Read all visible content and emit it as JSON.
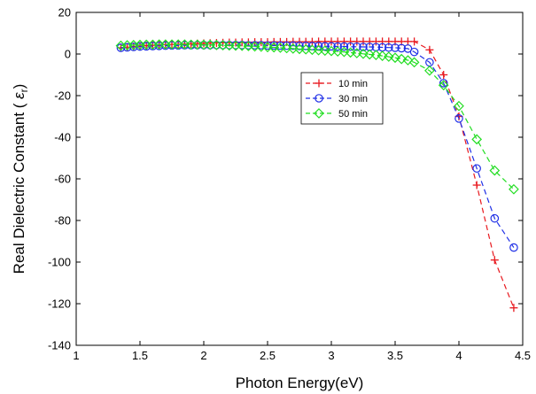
{
  "chart_data": {
    "type": "line",
    "title": "",
    "xlabel": "Photon Energy(eV)",
    "ylabel_main": "Real Dielectric Constant (",
    "ylabel_symbol": "ε",
    "ylabel_sub": "r",
    "ylabel_end": ")",
    "xlim": [
      1,
      4.5
    ],
    "ylim": [
      -140,
      20
    ],
    "x_ticks": [
      1,
      1.5,
      2,
      2.5,
      3,
      3.5,
      4,
      4.5
    ],
    "x_tick_labels": [
      "1",
      "1.5",
      "2",
      "2.5",
      "3",
      "3.5",
      "4",
      "4.5"
    ],
    "y_ticks": [
      20,
      0,
      -20,
      -40,
      -60,
      -80,
      -100,
      -120,
      -140
    ],
    "y_tick_labels": [
      "20",
      "0",
      "-20",
      "-40",
      "-60",
      "-80",
      "-100",
      "-120",
      "-140"
    ],
    "grid": false,
    "legend_position": "upper-middle-right",
    "series": [
      {
        "name": "10 min",
        "color": "#e8181e",
        "marker": "plus",
        "x": [
          1.35,
          1.4,
          1.45,
          1.5,
          1.55,
          1.6,
          1.65,
          1.7,
          1.75,
          1.8,
          1.85,
          1.9,
          1.95,
          2.0,
          2.05,
          2.1,
          2.15,
          2.2,
          2.25,
          2.3,
          2.35,
          2.4,
          2.45,
          2.5,
          2.55,
          2.6,
          2.65,
          2.7,
          2.75,
          2.8,
          2.85,
          2.9,
          2.95,
          3.0,
          3.05,
          3.1,
          3.15,
          3.2,
          3.25,
          3.3,
          3.35,
          3.4,
          3.45,
          3.5,
          3.55,
          3.6,
          3.65,
          3.77,
          3.88,
          4.0,
          4.14,
          4.28,
          4.43
        ],
        "y": [
          3.0,
          3.3,
          3.6,
          3.8,
          4.0,
          4.2,
          4.4,
          4.5,
          4.6,
          4.7,
          4.8,
          4.9,
          5.0,
          5.1,
          5.2,
          5.3,
          5.4,
          5.5,
          5.5,
          5.6,
          5.6,
          5.7,
          5.7,
          5.7,
          5.8,
          5.8,
          5.8,
          5.9,
          5.9,
          5.9,
          5.9,
          6.0,
          6.0,
          6.0,
          6.0,
          6.0,
          6.0,
          6.0,
          6.0,
          6.0,
          6.0,
          6.0,
          6.0,
          6.0,
          6.0,
          6.0,
          6.0,
          2.0,
          -10,
          -30,
          -63,
          -99,
          -122
        ]
      },
      {
        "name": "30 min",
        "color": "#1f2fe6",
        "marker": "circle",
        "x": [
          1.35,
          1.4,
          1.45,
          1.5,
          1.55,
          1.6,
          1.65,
          1.7,
          1.75,
          1.8,
          1.85,
          1.9,
          1.95,
          2.0,
          2.05,
          2.1,
          2.15,
          2.2,
          2.25,
          2.3,
          2.35,
          2.4,
          2.45,
          2.5,
          2.55,
          2.6,
          2.65,
          2.7,
          2.75,
          2.8,
          2.85,
          2.9,
          2.95,
          3.0,
          3.05,
          3.1,
          3.15,
          3.2,
          3.25,
          3.3,
          3.35,
          3.4,
          3.45,
          3.5,
          3.55,
          3.6,
          3.65,
          3.77,
          3.88,
          4.0,
          4.14,
          4.28,
          4.43
        ],
        "y": [
          3.0,
          3.2,
          3.4,
          3.6,
          3.7,
          3.8,
          3.9,
          4.0,
          4.1,
          4.1,
          4.2,
          4.2,
          4.3,
          4.3,
          4.3,
          4.3,
          4.3,
          4.3,
          4.3,
          4.3,
          4.2,
          4.2,
          4.2,
          4.1,
          4.1,
          4.0,
          4.0,
          4.0,
          3.9,
          3.9,
          3.8,
          3.8,
          3.7,
          3.7,
          3.6,
          3.6,
          3.5,
          3.5,
          3.4,
          3.4,
          3.3,
          3.2,
          3.1,
          3.0,
          2.8,
          2.6,
          1.0,
          -4.0,
          -14,
          -31,
          -55,
          -79,
          -93
        ]
      },
      {
        "name": "50 min",
        "color": "#22dd22",
        "marker": "diamond",
        "x": [
          1.35,
          1.4,
          1.45,
          1.5,
          1.55,
          1.6,
          1.65,
          1.7,
          1.75,
          1.8,
          1.85,
          1.9,
          1.95,
          2.0,
          2.05,
          2.1,
          2.15,
          2.2,
          2.25,
          2.3,
          2.35,
          2.4,
          2.45,
          2.5,
          2.55,
          2.6,
          2.65,
          2.7,
          2.75,
          2.8,
          2.85,
          2.9,
          2.95,
          3.0,
          3.05,
          3.1,
          3.15,
          3.2,
          3.25,
          3.3,
          3.35,
          3.4,
          3.45,
          3.5,
          3.55,
          3.6,
          3.65,
          3.77,
          3.88,
          4.0,
          4.14,
          4.28,
          4.43
        ],
        "y": [
          4.0,
          4.2,
          4.3,
          4.4,
          4.5,
          4.5,
          4.6,
          4.6,
          4.6,
          4.6,
          4.6,
          4.5,
          4.5,
          4.4,
          4.4,
          4.3,
          4.2,
          4.1,
          4.0,
          3.9,
          3.8,
          3.6,
          3.5,
          3.3,
          3.2,
          3.0,
          2.8,
          2.6,
          2.4,
          2.2,
          2.0,
          1.8,
          1.6,
          1.4,
          1.2,
          1.0,
          0.7,
          0.4,
          0.1,
          -0.2,
          -0.5,
          -0.9,
          -1.3,
          -1.8,
          -2.4,
          -3.0,
          -4.0,
          -8.0,
          -15,
          -25,
          -41,
          -56,
          -65
        ]
      }
    ]
  }
}
